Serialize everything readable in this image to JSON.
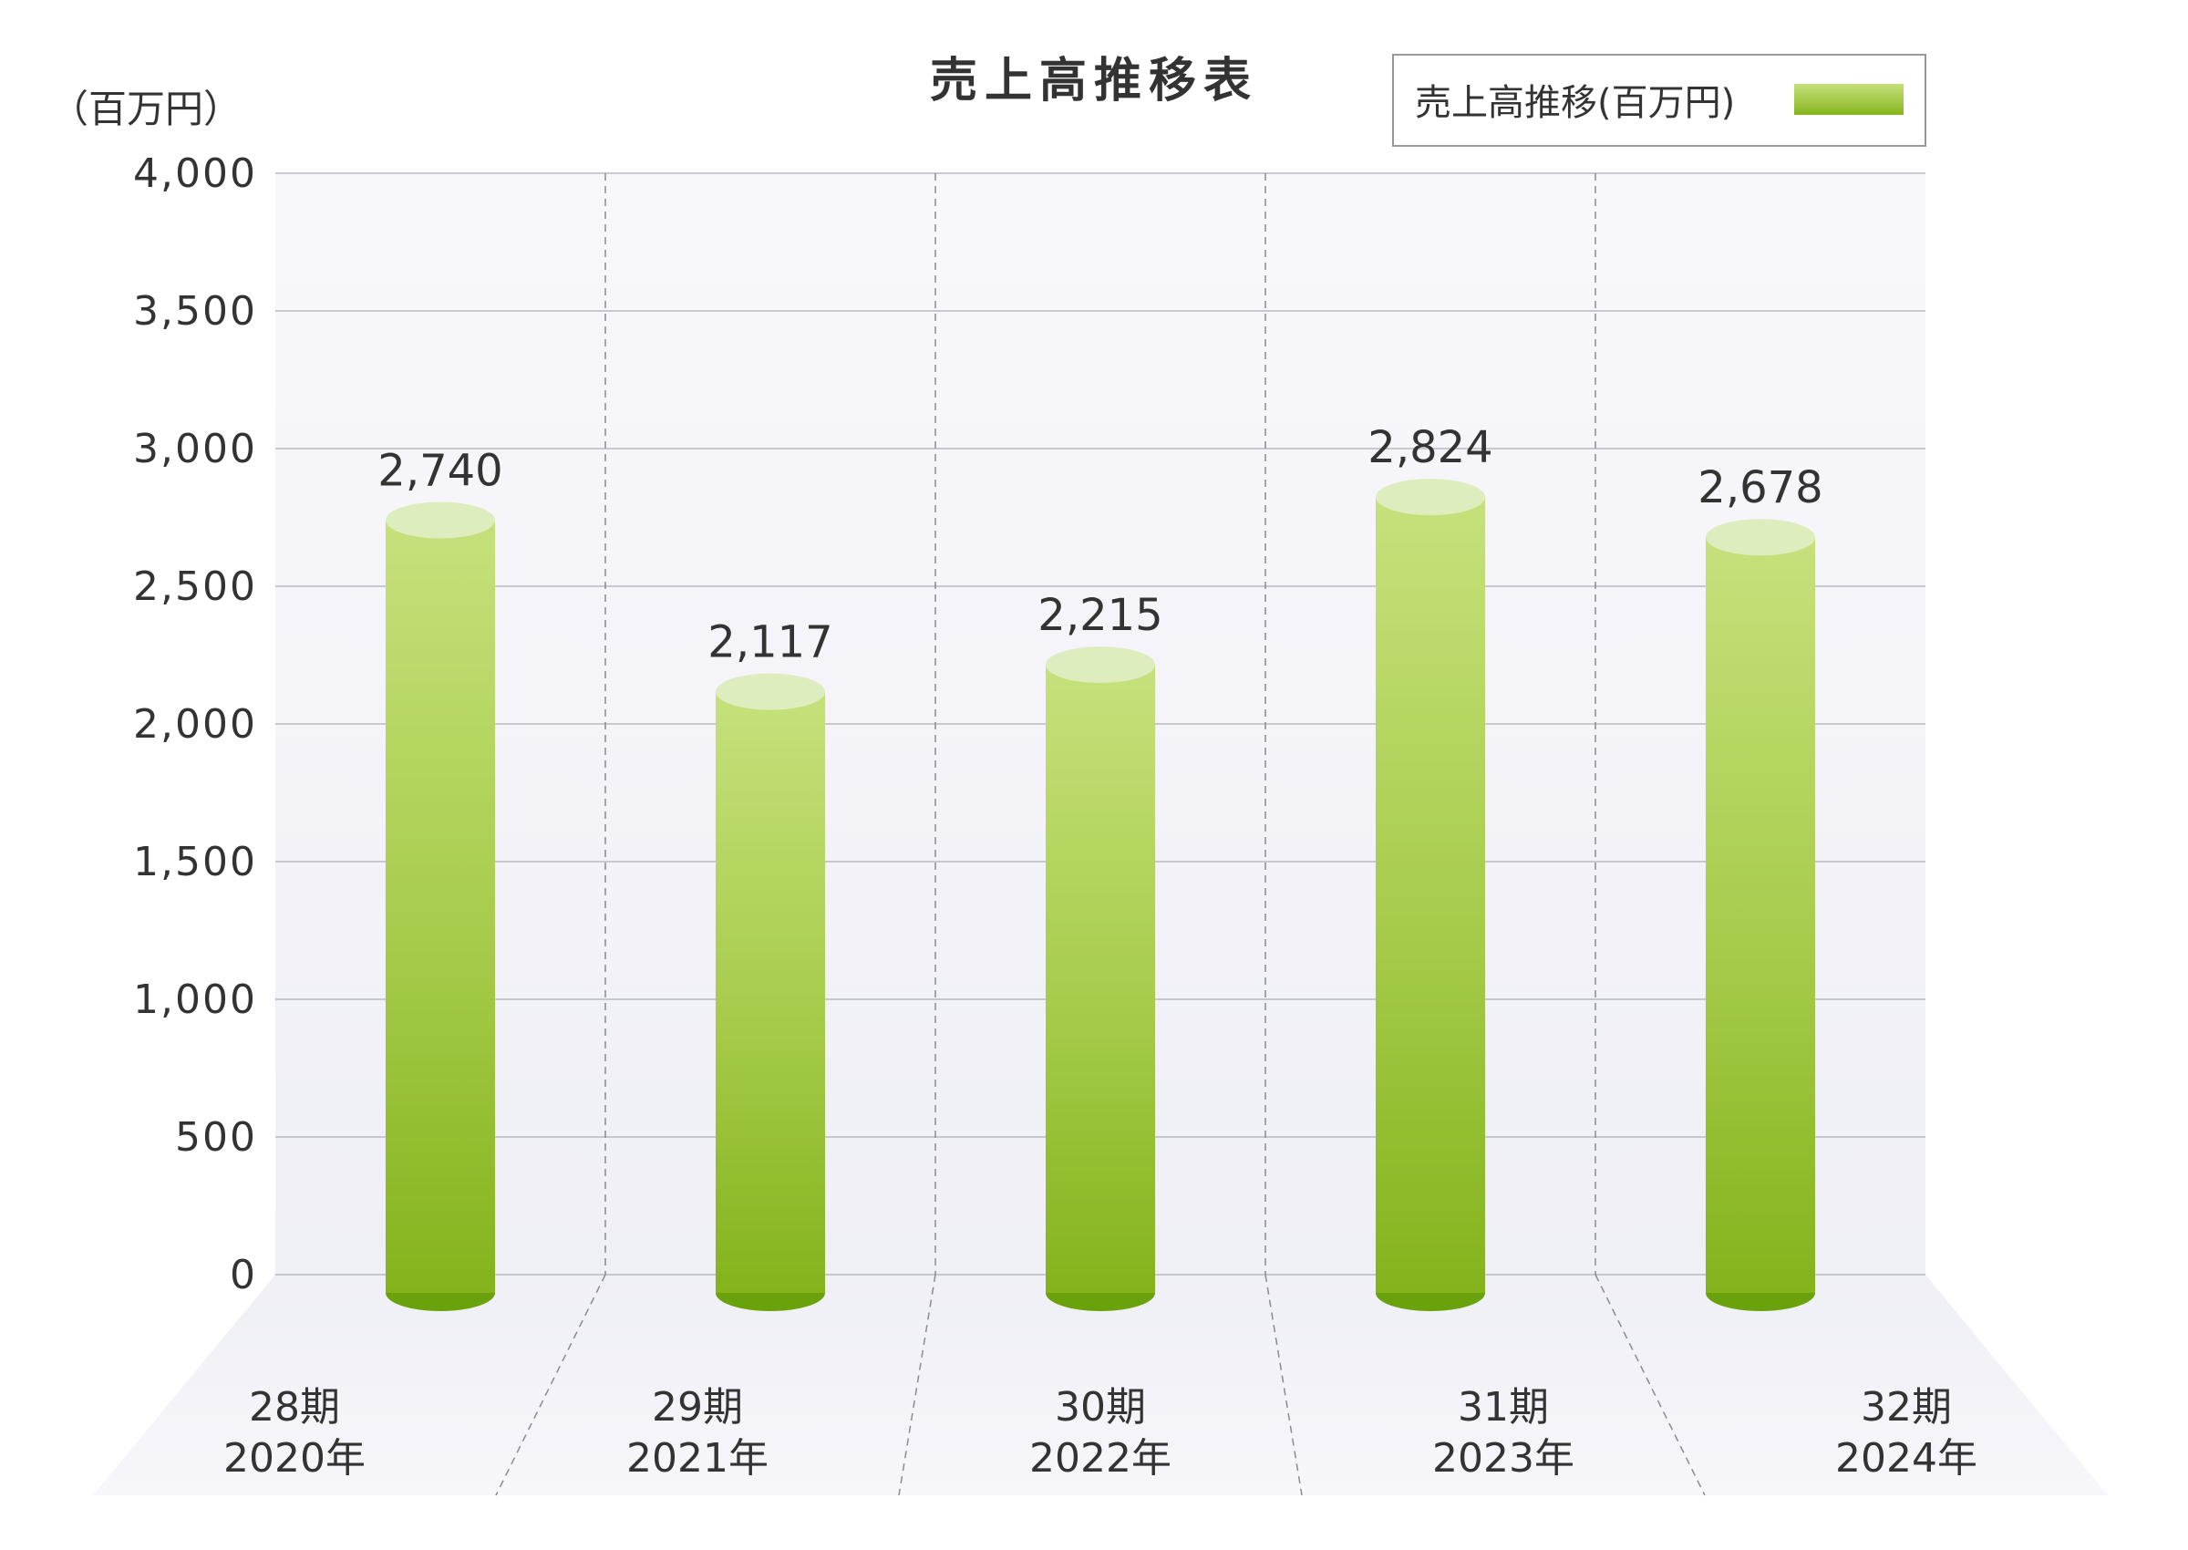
{
  "chart_data": {
    "type": "bar",
    "title": "売上高推移表",
    "unit_label": "（百万円）",
    "legend": {
      "label": "売上高推移(百万円)",
      "placement": "top-right"
    },
    "ylim": [
      0,
      4000
    ],
    "y_ticks": [
      "0",
      "500",
      "1,000",
      "1,500",
      "2,000",
      "2,500",
      "3,000",
      "3,500",
      "4,000"
    ],
    "y_tick_values": [
      0,
      500,
      1000,
      1500,
      2000,
      2500,
      3000,
      3500,
      4000
    ],
    "categories": [
      {
        "period": "28期",
        "year": "2020年"
      },
      {
        "period": "29期",
        "year": "2021年"
      },
      {
        "period": "30期",
        "year": "2022年"
      },
      {
        "period": "31期",
        "year": "2023年"
      },
      {
        "period": "32期",
        "year": "2024年"
      }
    ],
    "series": [
      {
        "name": "売上高推移(百万円)",
        "values": [
          2740,
          2117,
          2215,
          2824,
          2678
        ],
        "labels": [
          "2,740",
          "2,117",
          "2,215",
          "2,824",
          "2,678"
        ]
      }
    ],
    "grid": true,
    "style": "3d-cylinder",
    "colors": {
      "bar_top": "#c5e07a",
      "bar_bottom": "#86b41e",
      "bar_cap": "#deedbd",
      "bar_base": "#6aa20c",
      "grid": "#b9b9c4",
      "text": "#333333",
      "panel": "#f2f2f8"
    }
  }
}
